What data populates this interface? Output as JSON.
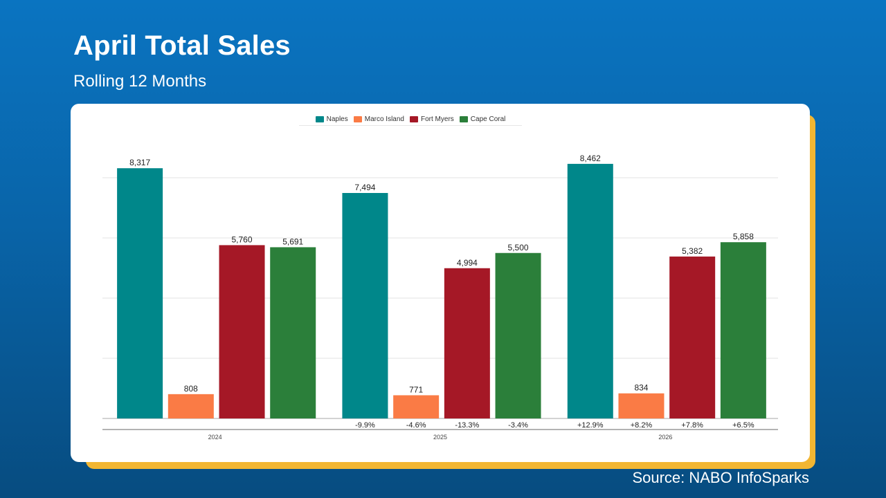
{
  "header": {
    "title": "April Total Sales",
    "subtitle": "Rolling 12 Months"
  },
  "footer": {
    "source": "Source: NABO InfoSparks"
  },
  "colors": {
    "naples": "#00878a",
    "marco_island": "#fa7b45",
    "fort_myers": "#a51826",
    "cape_coral": "#2b7f3a",
    "background": "#0a6cb6",
    "card_accent": "#f2b632"
  },
  "chart_data": {
    "type": "bar",
    "title": "",
    "xlabel": "",
    "ylabel": "",
    "categories": [
      "2024",
      "2025",
      "2026"
    ],
    "ylim": [
      0,
      10000
    ],
    "grid": true,
    "legend_position": "top",
    "series": [
      {
        "name": "Naples",
        "color": "#00878a",
        "values": [
          8317,
          7494,
          8462
        ],
        "labels": [
          "8,317",
          "7,494",
          "8,462"
        ],
        "changes": [
          "",
          "-9.9%",
          "+12.9%"
        ]
      },
      {
        "name": "Marco Island",
        "color": "#fa7b45",
        "values": [
          808,
          771,
          834
        ],
        "labels": [
          "808",
          "771",
          "834"
        ],
        "changes": [
          "",
          "-4.6%",
          "+8.2%"
        ]
      },
      {
        "name": "Fort Myers",
        "color": "#a51826",
        "values": [
          5760,
          4994,
          5382
        ],
        "labels": [
          "5,760",
          "4,994",
          "5,382"
        ],
        "changes": [
          "",
          "-13.3%",
          "+7.8%"
        ]
      },
      {
        "name": "Cape Coral",
        "color": "#2b7f3a",
        "values": [
          5691,
          5500,
          5858
        ],
        "labels": [
          "5,691",
          "5,500",
          "5,858"
        ],
        "changes": [
          "",
          "-3.4%",
          "+6.5%"
        ]
      }
    ]
  }
}
